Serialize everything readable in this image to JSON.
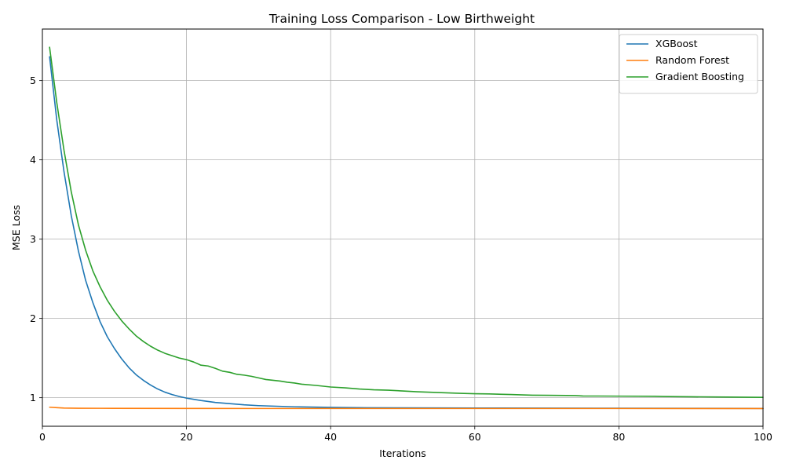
{
  "chart_data": {
    "type": "line",
    "title": "Training Loss Comparison - Low Birthweight",
    "xlabel": "Iterations",
    "ylabel": "MSE Loss",
    "xlim": [
      0,
      100
    ],
    "ylim": [
      0.64,
      5.65
    ],
    "xticks": [
      0,
      20,
      40,
      60,
      80,
      100
    ],
    "yticks": [
      1,
      2,
      3,
      4,
      5
    ],
    "grid": true,
    "legend_position": "top-right",
    "series": [
      {
        "name": "XGBoost",
        "color": "#1f77b4",
        "points": [
          [
            1,
            5.3
          ],
          [
            2,
            4.5
          ],
          [
            3,
            3.85
          ],
          [
            4,
            3.3
          ],
          [
            5,
            2.85
          ],
          [
            6,
            2.48
          ],
          [
            7,
            2.2
          ],
          [
            8,
            1.96
          ],
          [
            9,
            1.77
          ],
          [
            10,
            1.62
          ],
          [
            11,
            1.49
          ],
          [
            12,
            1.38
          ],
          [
            13,
            1.29
          ],
          [
            14,
            1.22
          ],
          [
            15,
            1.16
          ],
          [
            16,
            1.11
          ],
          [
            17,
            1.07
          ],
          [
            18,
            1.04
          ],
          [
            19,
            1.015
          ],
          [
            20,
            0.995
          ],
          [
            22,
            0.965
          ],
          [
            24,
            0.94
          ],
          [
            26,
            0.925
          ],
          [
            28,
            0.91
          ],
          [
            30,
            0.9
          ],
          [
            35,
            0.885
          ],
          [
            40,
            0.878
          ],
          [
            45,
            0.874
          ],
          [
            50,
            0.872
          ],
          [
            60,
            0.87
          ],
          [
            70,
            0.868
          ],
          [
            80,
            0.867
          ],
          [
            90,
            0.866
          ],
          [
            100,
            0.865
          ]
        ]
      },
      {
        "name": "Random Forest",
        "color": "#ff7f0e",
        "points": [
          [
            1,
            0.88
          ],
          [
            2,
            0.875
          ],
          [
            3,
            0.87
          ],
          [
            4,
            0.868
          ],
          [
            5,
            0.867
          ],
          [
            10,
            0.866
          ],
          [
            20,
            0.865
          ],
          [
            30,
            0.864
          ],
          [
            40,
            0.864
          ],
          [
            50,
            0.864
          ],
          [
            60,
            0.864
          ],
          [
            70,
            0.864
          ],
          [
            80,
            0.864
          ],
          [
            90,
            0.863
          ],
          [
            100,
            0.863
          ]
        ]
      },
      {
        "name": "Gradient Boosting",
        "color": "#2ca02c",
        "points": [
          [
            1,
            5.42
          ],
          [
            2,
            4.72
          ],
          [
            3,
            4.12
          ],
          [
            4,
            3.6
          ],
          [
            5,
            3.18
          ],
          [
            6,
            2.86
          ],
          [
            7,
            2.6
          ],
          [
            8,
            2.4
          ],
          [
            9,
            2.23
          ],
          [
            10,
            2.09
          ],
          [
            11,
            1.97
          ],
          [
            12,
            1.87
          ],
          [
            13,
            1.78
          ],
          [
            14,
            1.71
          ],
          [
            15,
            1.65
          ],
          [
            16,
            1.6
          ],
          [
            17,
            1.56
          ],
          [
            18,
            1.53
          ],
          [
            19,
            1.5
          ],
          [
            20,
            1.48
          ],
          [
            21,
            1.45
          ],
          [
            22,
            1.41
          ],
          [
            23,
            1.4
          ],
          [
            24,
            1.37
          ],
          [
            25,
            1.335
          ],
          [
            26,
            1.32
          ],
          [
            27,
            1.295
          ],
          [
            28,
            1.285
          ],
          [
            29,
            1.27
          ],
          [
            30,
            1.25
          ],
          [
            31,
            1.23
          ],
          [
            32,
            1.22
          ],
          [
            33,
            1.21
          ],
          [
            34,
            1.195
          ],
          [
            35,
            1.185
          ],
          [
            36,
            1.17
          ],
          [
            38,
            1.155
          ],
          [
            40,
            1.135
          ],
          [
            42,
            1.125
          ],
          [
            44,
            1.11
          ],
          [
            46,
            1.1
          ],
          [
            48,
            1.095
          ],
          [
            50,
            1.085
          ],
          [
            52,
            1.075
          ],
          [
            55,
            1.065
          ],
          [
            58,
            1.055
          ],
          [
            60,
            1.05
          ],
          [
            62,
            1.048
          ],
          [
            65,
            1.04
          ],
          [
            68,
            1.032
          ],
          [
            70,
            1.03
          ],
          [
            74,
            1.027
          ],
          [
            75,
            1.022
          ],
          [
            80,
            1.02
          ],
          [
            85,
            1.018
          ],
          [
            86,
            1.016
          ],
          [
            87,
            1.014
          ],
          [
            90,
            1.012
          ],
          [
            95,
            1.008
          ],
          [
            100,
            1.005
          ]
        ]
      }
    ]
  }
}
